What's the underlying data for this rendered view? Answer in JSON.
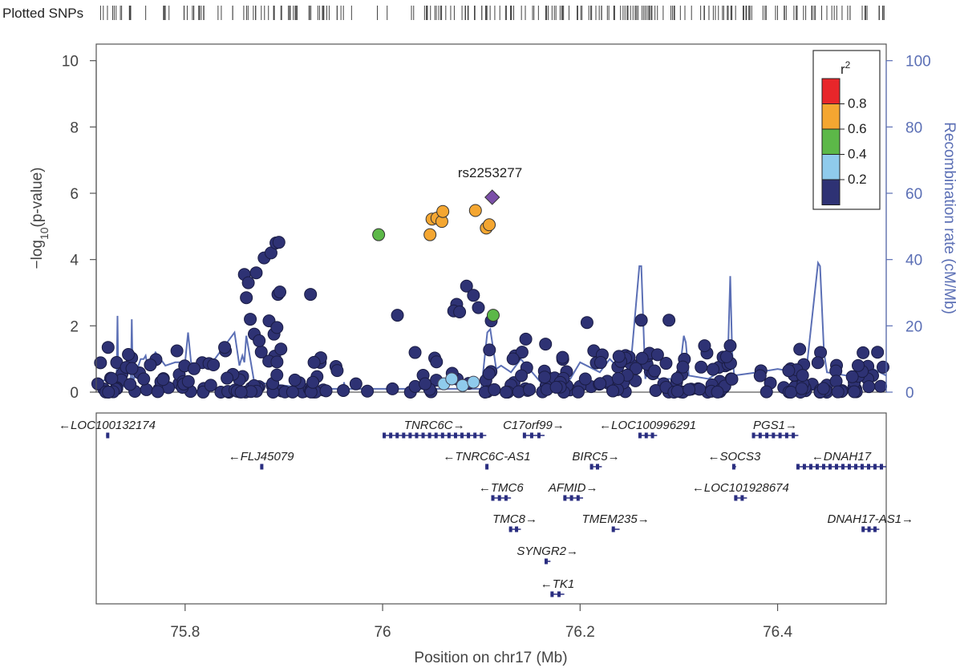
{
  "chart_data": {
    "type": "scatter",
    "top_strip_label": "Plotted SNPs",
    "xlabel": "Position on chr17 (Mb)",
    "ylabel": "-log10(p-value)",
    "ylabel_right": "Recombination rate (cM/Mb)",
    "xlim": [
      75.71,
      76.51
    ],
    "ylim": [
      0,
      10.5
    ],
    "ylim_right": [
      0,
      105
    ],
    "x_ticks": [
      "75.8",
      "76",
      "76.2",
      "76.4"
    ],
    "y_ticks": [
      "0",
      "2",
      "4",
      "6",
      "8",
      "10"
    ],
    "y_ticks_right": [
      "0",
      "20",
      "40",
      "60",
      "80",
      "100"
    ],
    "lead_snp": {
      "label": "rs2253277",
      "x": 76.111,
      "y": 5.88,
      "color": "#7b4fa8"
    },
    "legend": {
      "title": "r²",
      "ticks": [
        "0.8",
        "0.6",
        "0.4",
        "0.2"
      ],
      "bins": [
        {
          "color": "#e8262a",
          "range": "0.8-1.0"
        },
        {
          "color": "#f4a631",
          "range": "0.6-0.8"
        },
        {
          "color": "#5cb848",
          "range": "0.4-0.6"
        },
        {
          "color": "#8fcbec",
          "range": "0.2-0.4"
        },
        {
          "color": "#2e3274",
          "range": "0-0.2"
        }
      ]
    },
    "colors": {
      "navy": "#2e3274",
      "light_blue": "#8fcbec",
      "green": "#5cb848",
      "orange": "#f4a631",
      "red": "#e8262a",
      "recomb_line": "#5b6fb5",
      "gene": "#2a2e80"
    },
    "orange_points": [
      {
        "x": 76.048,
        "y": 4.75
      },
      {
        "x": 76.05,
        "y": 5.22
      },
      {
        "x": 76.055,
        "y": 5.25
      },
      {
        "x": 76.06,
        "y": 5.15
      },
      {
        "x": 76.061,
        "y": 5.45
      },
      {
        "x": 76.094,
        "y": 5.48
      },
      {
        "x": 76.105,
        "y": 4.95
      },
      {
        "x": 76.108,
        "y": 5.05
      }
    ],
    "green_points": [
      {
        "x": 75.996,
        "y": 4.75
      },
      {
        "x": 76.112,
        "y": 2.32
      }
    ],
    "lightblue_points": [
      {
        "x": 76.062,
        "y": 0.25
      },
      {
        "x": 76.07,
        "y": 0.4
      },
      {
        "x": 76.081,
        "y": 0.2
      },
      {
        "x": 76.092,
        "y": 0.3
      }
    ],
    "navy_points_highlight": [
      {
        "x": 75.86,
        "y": 3.55
      },
      {
        "x": 75.862,
        "y": 2.85
      },
      {
        "x": 75.864,
        "y": 3.3
      },
      {
        "x": 75.866,
        "y": 2.2
      },
      {
        "x": 75.87,
        "y": 1.75
      },
      {
        "x": 75.872,
        "y": 3.6
      },
      {
        "x": 75.88,
        "y": 4.05
      },
      {
        "x": 75.887,
        "y": 4.2
      },
      {
        "x": 75.892,
        "y": 4.5
      },
      {
        "x": 75.895,
        "y": 4.52
      },
      {
        "x": 75.894,
        "y": 2.95
      },
      {
        "x": 75.896,
        "y": 3.02
      },
      {
        "x": 75.885,
        "y": 2.15
      },
      {
        "x": 75.89,
        "y": 1.75
      },
      {
        "x": 75.893,
        "y": 1.95
      },
      {
        "x": 75.897,
        "y": 1.3
      },
      {
        "x": 75.927,
        "y": 2.95
      },
      {
        "x": 76.015,
        "y": 2.32
      },
      {
        "x": 76.085,
        "y": 3.2
      },
      {
        "x": 76.092,
        "y": 2.92
      },
      {
        "x": 76.075,
        "y": 2.65
      },
      {
        "x": 76.072,
        "y": 2.45
      },
      {
        "x": 76.078,
        "y": 2.42
      },
      {
        "x": 76.097,
        "y": 2.55
      },
      {
        "x": 76.11,
        "y": 2.15
      },
      {
        "x": 76.207,
        "y": 2.1
      },
      {
        "x": 76.262,
        "y": 2.17
      },
      {
        "x": 76.29,
        "y": 2.17
      },
      {
        "x": 76.145,
        "y": 1.6
      },
      {
        "x": 76.165,
        "y": 1.45
      },
      {
        "x": 75.875,
        "y": 1.55
      },
      {
        "x": 75.84,
        "y": 1.35
      },
      {
        "x": 75.722,
        "y": 1.35
      },
      {
        "x": 75.954,
        "y": 0.65
      },
      {
        "x": 76.01,
        "y": 0.1
      },
      {
        "x": 76.043,
        "y": 0.25
      },
      {
        "x": 75.973,
        "y": 0.25
      },
      {
        "x": 76.326,
        "y": 1.4
      },
      {
        "x": 76.352,
        "y": 1.4
      }
    ],
    "navy_points_background_count": 320,
    "recombination_line": {
      "x": [
        75.71,
        75.715,
        75.72,
        75.7305,
        75.7315,
        75.7325,
        75.74,
        75.745,
        75.746,
        75.747,
        75.755,
        75.758,
        75.76,
        75.762,
        75.77,
        75.78,
        75.79,
        75.8,
        75.803,
        75.806,
        75.81,
        75.83,
        75.85,
        75.855,
        75.858,
        75.86,
        75.862,
        75.87,
        75.87,
        75.9,
        75.93,
        75.96,
        75.961,
        75.962,
        75.99,
        76.05,
        76.1,
        76.106,
        76.109,
        76.115,
        76.12,
        76.13,
        76.14,
        76.16,
        76.19,
        76.2,
        76.22,
        76.23,
        76.25,
        76.26,
        76.262,
        76.266,
        76.268,
        76.28,
        76.3,
        76.305,
        76.307,
        76.31,
        76.33,
        76.34,
        76.35,
        76.352,
        76.354,
        76.356,
        76.38,
        76.4,
        76.42,
        76.43,
        76.441,
        76.443,
        76.447,
        76.45,
        76.47,
        76.49,
        76.51
      ],
      "y": [
        2,
        3,
        4,
        1,
        23,
        1,
        2,
        2,
        22,
        3,
        10,
        10,
        11,
        8,
        12,
        8,
        9,
        9,
        18,
        9,
        8,
        10,
        18,
        8,
        11,
        9,
        17,
        3,
        3,
        2,
        1,
        1,
        3,
        1,
        1,
        1,
        1,
        18,
        19,
        7,
        8,
        6,
        10,
        3,
        4,
        9,
        6,
        10,
        4,
        38,
        38,
        4,
        6,
        4,
        4,
        17,
        15,
        5,
        4,
        6,
        14,
        35,
        12,
        5,
        6,
        7,
        6,
        9,
        39,
        38,
        12,
        6,
        5,
        8,
        5
      ]
    },
    "genes": [
      {
        "name": "LOC100132174",
        "strand": "-",
        "start": 75.72,
        "end": 75.722,
        "row": 0
      },
      {
        "name": "FLJ45079",
        "strand": "-",
        "start": 75.876,
        "end": 75.878,
        "row": 1
      },
      {
        "name": "TNRC6C",
        "strand": "+",
        "start": 76.0,
        "end": 76.105,
        "row": 0
      },
      {
        "name": "TNRC6C-AS1",
        "strand": "-",
        "start": 76.104,
        "end": 76.107,
        "row": 1
      },
      {
        "name": "TMC6",
        "strand": "-",
        "start": 76.11,
        "end": 76.13,
        "row": 2
      },
      {
        "name": "TMC8",
        "strand": "+",
        "start": 76.128,
        "end": 76.14,
        "row": 3
      },
      {
        "name": "SYNGR2",
        "strand": "+",
        "start": 76.164,
        "end": 76.17,
        "row": 4
      },
      {
        "name": "TK1",
        "strand": "-",
        "start": 76.17,
        "end": 76.184,
        "row": 5
      },
      {
        "name": "C17orf99",
        "strand": "+",
        "start": 76.142,
        "end": 76.164,
        "row": 0
      },
      {
        "name": "AFMID",
        "strand": "+",
        "start": 76.183,
        "end": 76.203,
        "row": 2
      },
      {
        "name": "BIRC5",
        "strand": "+",
        "start": 76.21,
        "end": 76.222,
        "row": 1
      },
      {
        "name": "TMEM235",
        "strand": "+",
        "start": 76.232,
        "end": 76.24,
        "row": 3
      },
      {
        "name": "LOC100996291",
        "strand": "-",
        "start": 76.259,
        "end": 76.278,
        "row": 0
      },
      {
        "name": "SOCS3",
        "strand": "-",
        "start": 76.354,
        "end": 76.358,
        "row": 1
      },
      {
        "name": "LOC101928674",
        "strand": "-",
        "start": 76.356,
        "end": 76.369,
        "row": 2
      },
      {
        "name": "PGS1",
        "strand": "+",
        "start": 76.374,
        "end": 76.421,
        "row": 0
      },
      {
        "name": "DNAH17",
        "strand": "-",
        "start": 76.419,
        "end": 76.51,
        "row": 1
      },
      {
        "name": "DNAH17-AS1",
        "strand": "+",
        "start": 76.485,
        "end": 76.503,
        "row": 3
      }
    ]
  }
}
